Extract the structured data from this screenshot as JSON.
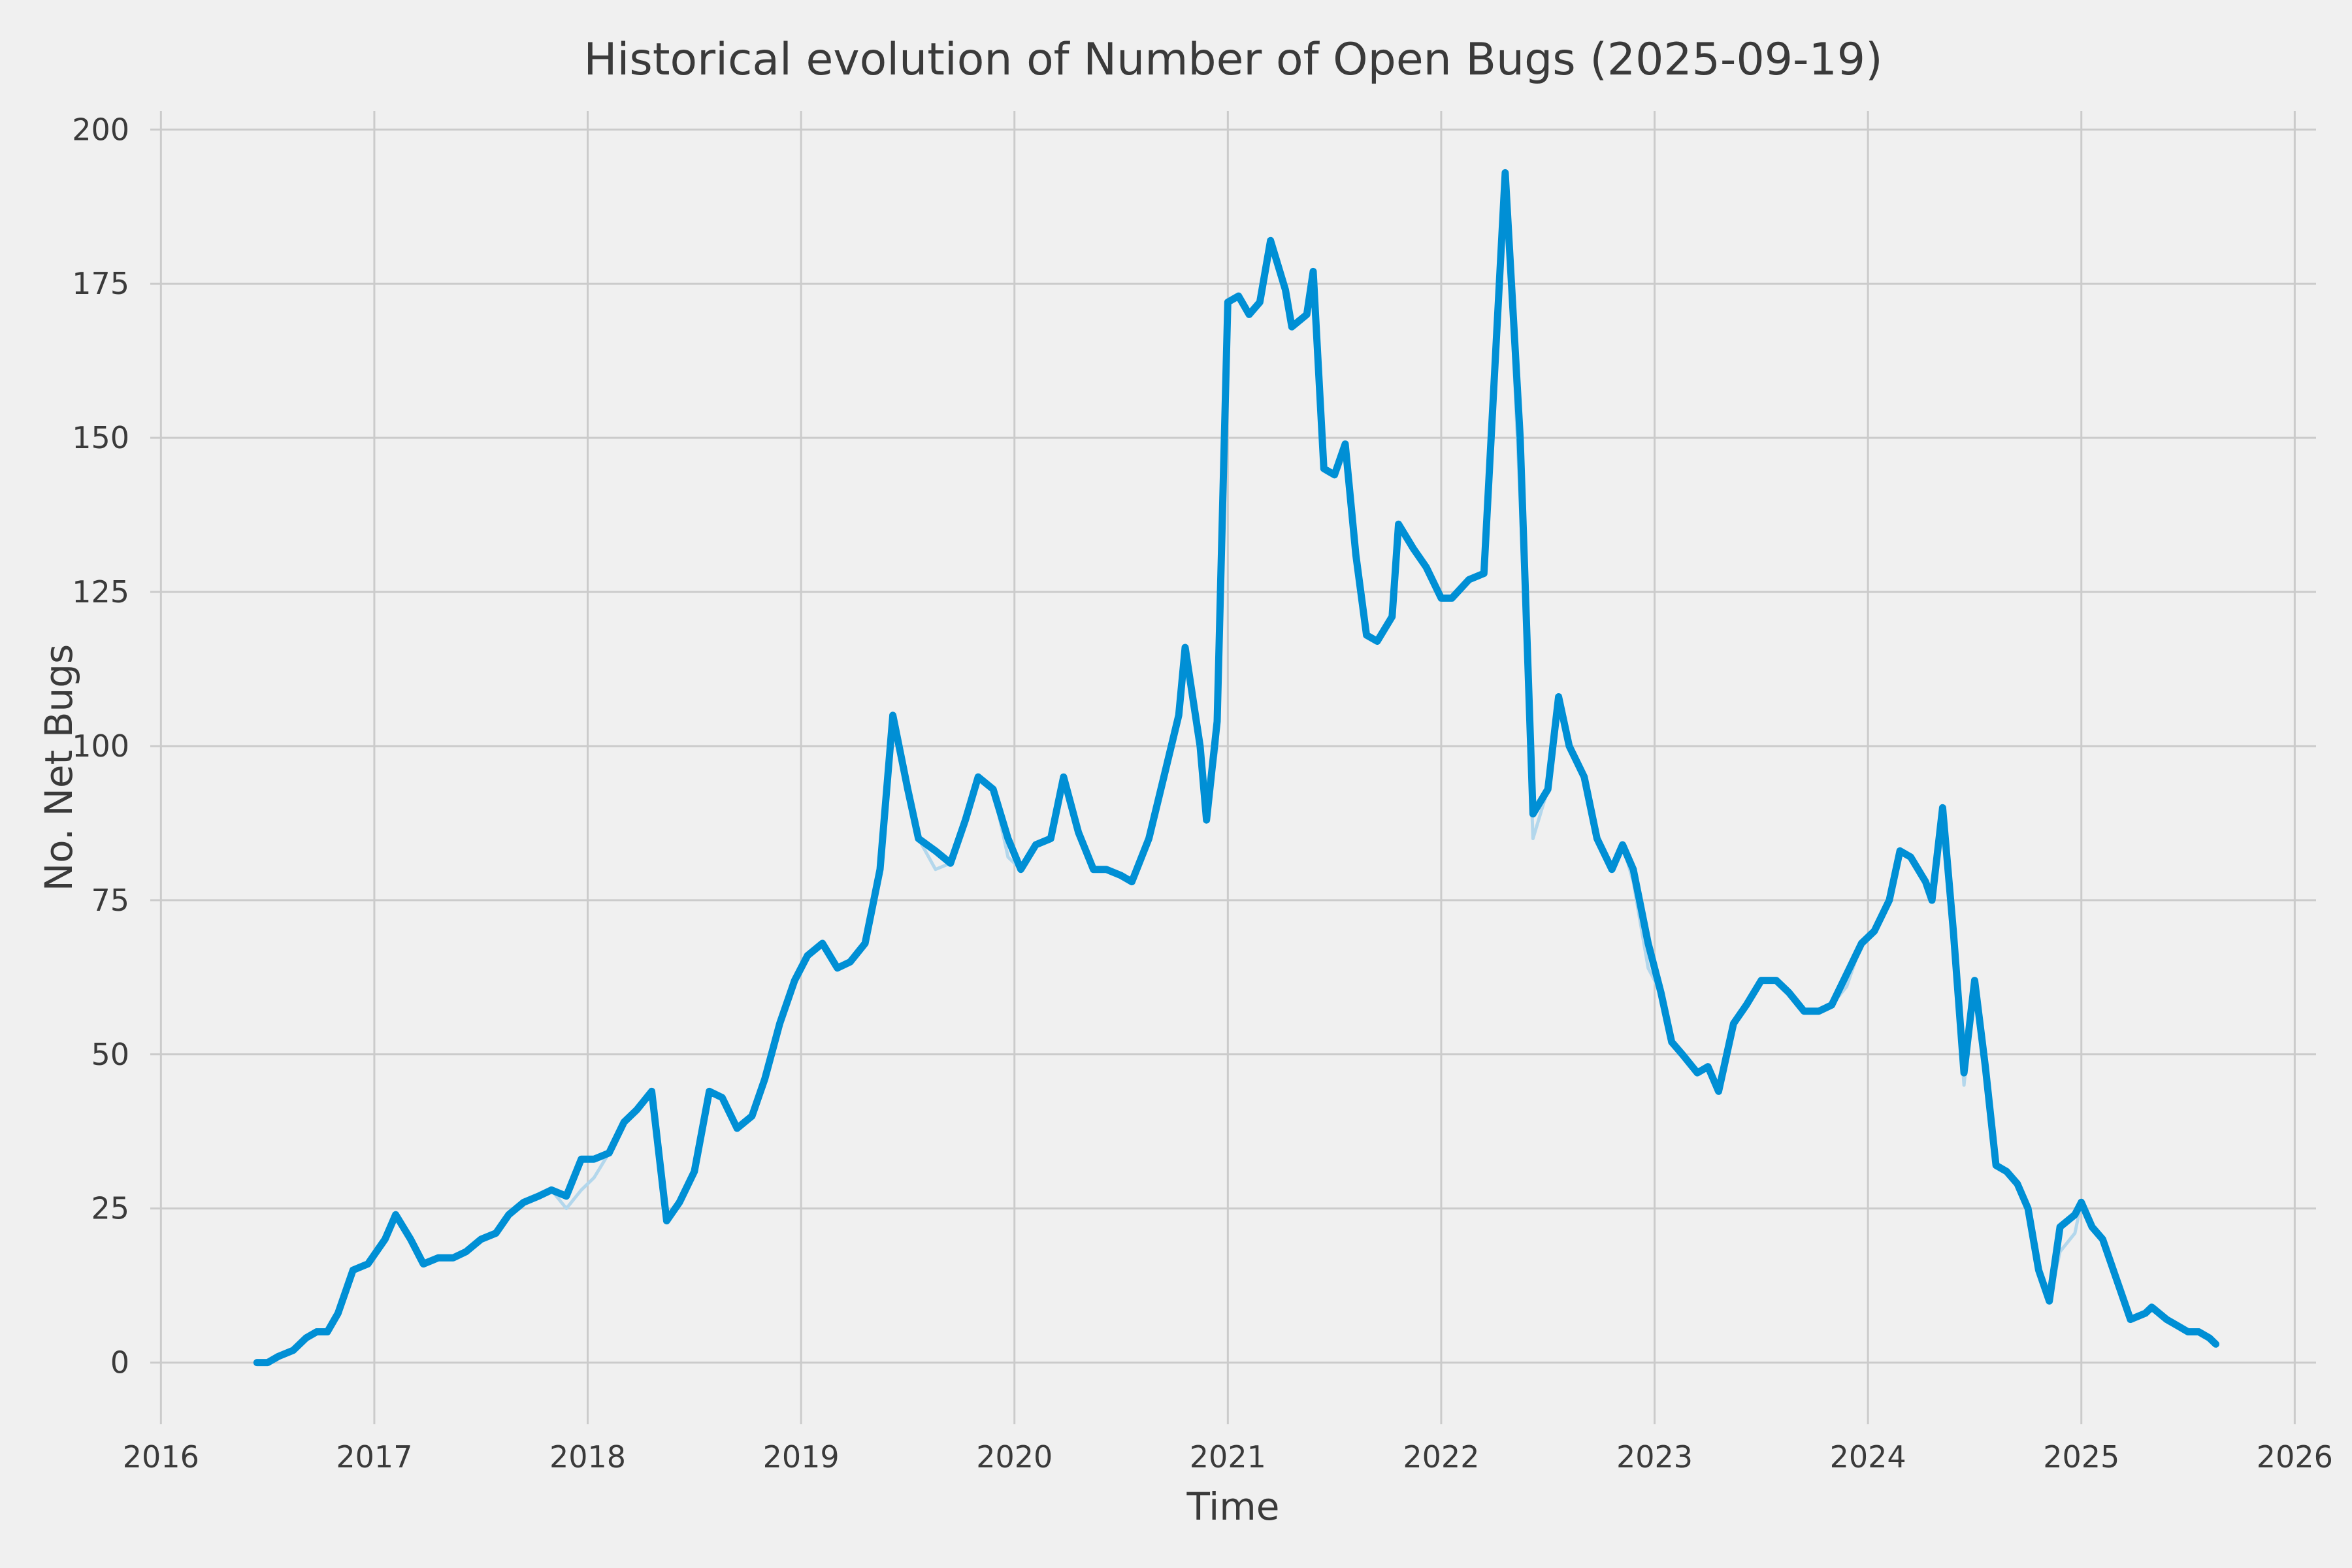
{
  "style": {
    "background": "#f0f0f0",
    "grid_color": "#cbcbcb",
    "text_color": "#3a3a3a"
  },
  "chart_data": {
    "type": "line",
    "title": "Historical evolution of Number of Open Bugs (2025-09-19)",
    "xlabel": "Time",
    "ylabel": "No. Net Bugs",
    "xlim": [
      2015.95,
      2026.1
    ],
    "ylim": [
      -10,
      203
    ],
    "x_ticks": [
      2016,
      2017,
      2018,
      2019,
      2020,
      2021,
      2022,
      2023,
      2024,
      2025,
      2026
    ],
    "y_ticks": [
      0,
      25,
      50,
      75,
      100,
      125,
      150,
      175,
      200
    ],
    "grid": true,
    "legend": "none",
    "x": [
      2016.45,
      2016.5,
      2016.55,
      2016.62,
      2016.68,
      2016.73,
      2016.78,
      2016.83,
      2016.9,
      2016.97,
      2017.05,
      2017.1,
      2017.17,
      2017.23,
      2017.3,
      2017.37,
      2017.43,
      2017.5,
      2017.57,
      2017.63,
      2017.7,
      2017.77,
      2017.83,
      2017.9,
      2017.97,
      2018.03,
      2018.1,
      2018.17,
      2018.23,
      2018.3,
      2018.37,
      2018.43,
      2018.5,
      2018.57,
      2018.63,
      2018.7,
      2018.77,
      2018.83,
      2018.9,
      2018.97,
      2019.03,
      2019.1,
      2019.17,
      2019.23,
      2019.3,
      2019.37,
      2019.43,
      2019.5,
      2019.55,
      2019.63,
      2019.7,
      2019.77,
      2019.83,
      2019.9,
      2019.97,
      2020.03,
      2020.1,
      2020.17,
      2020.23,
      2020.3,
      2020.37,
      2020.43,
      2020.5,
      2020.55,
      2020.63,
      2020.7,
      2020.77,
      2020.8,
      2020.87,
      2020.9,
      2020.95,
      2021.0,
      2021.05,
      2021.1,
      2021.15,
      2021.2,
      2021.27,
      2021.3,
      2021.37,
      2021.4,
      2021.45,
      2021.5,
      2021.55,
      2021.6,
      2021.65,
      2021.7,
      2021.77,
      2021.8,
      2021.87,
      2021.93,
      2022.0,
      2022.05,
      2022.13,
      2022.2,
      2022.3,
      2022.37,
      2022.43,
      2022.5,
      2022.55,
      2022.6,
      2022.67,
      2022.73,
      2022.8,
      2022.85,
      2022.9,
      2022.97,
      2023.03,
      2023.08,
      2023.13,
      2023.2,
      2023.25,
      2023.3,
      2023.37,
      2023.43,
      2023.5,
      2023.57,
      2023.63,
      2023.7,
      2023.77,
      2023.83,
      2023.9,
      2023.97,
      2024.03,
      2024.1,
      2024.15,
      2024.2,
      2024.27,
      2024.3,
      2024.35,
      2024.4,
      2024.45,
      2024.5,
      2024.55,
      2024.6,
      2024.65,
      2024.7,
      2024.75,
      2024.8,
      2024.85,
      2024.9,
      2024.97,
      2025.0,
      2025.05,
      2025.1,
      2025.17,
      2025.23,
      2025.3,
      2025.33,
      2025.4,
      2025.45,
      2025.5,
      2025.55,
      2025.6,
      2025.63
    ],
    "series": [
      {
        "name": "open_bugs",
        "color": "#008fd5",
        "linewidth": 11,
        "values": [
          0,
          0,
          1,
          2,
          4,
          5,
          5,
          8,
          15,
          16,
          20,
          24,
          20,
          16,
          17,
          17,
          18,
          20,
          21,
          24,
          26,
          27,
          28,
          27,
          33,
          33,
          34,
          39,
          41,
          44,
          23,
          26,
          31,
          44,
          43,
          38,
          40,
          46,
          55,
          62,
          66,
          68,
          64,
          65,
          68,
          80,
          105,
          93,
          85,
          83,
          81,
          88,
          95,
          93,
          85,
          80,
          84,
          85,
          95,
          86,
          80,
          80,
          79,
          78,
          85,
          95,
          105,
          116,
          100,
          88,
          104,
          172,
          173,
          170,
          172,
          182,
          174,
          168,
          170,
          177,
          145,
          144,
          149,
          131,
          118,
          117,
          121,
          136,
          132,
          129,
          124,
          124,
          127,
          128,
          193,
          150,
          89,
          93,
          108,
          100,
          95,
          85,
          80,
          84,
          80,
          68,
          60,
          52,
          50,
          47,
          48,
          44,
          55,
          58,
          62,
          62,
          60,
          57,
          57,
          58,
          63,
          68,
          70,
          75,
          83,
          82,
          78,
          75,
          90,
          70,
          47,
          62,
          48,
          32,
          31,
          29,
          25,
          15,
          10,
          22,
          24,
          26,
          22,
          20,
          13,
          7,
          8,
          9,
          7,
          6,
          5,
          5,
          4,
          3
        ]
      },
      {
        "name": "open_bugs_raw",
        "color": "#b3d7ec",
        "linewidth": 5,
        "overrides": [
          [
            23,
            25
          ],
          [
            24,
            28
          ],
          [
            25,
            30
          ],
          [
            49,
            80
          ],
          [
            54,
            82
          ],
          [
            70,
            100
          ],
          [
            95,
            140
          ],
          [
            96,
            85
          ],
          [
            104,
            78
          ],
          [
            105,
            64
          ],
          [
            120,
            61
          ],
          [
            130,
            45
          ],
          [
            139,
            18
          ],
          [
            140,
            21
          ]
        ]
      }
    ]
  }
}
